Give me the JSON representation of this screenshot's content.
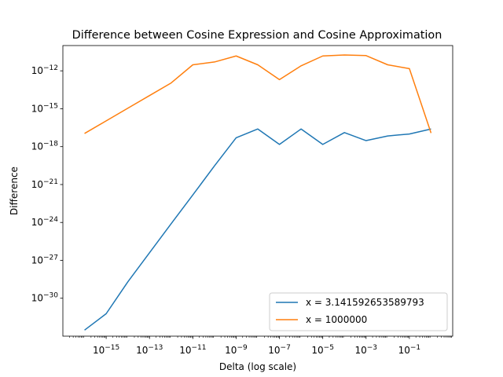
{
  "chart_data": {
    "type": "line",
    "title": "Difference between Cosine Expression and Cosine Approximation",
    "xlabel": "Delta (log scale)",
    "ylabel": "Difference",
    "xscale": "log",
    "yscale": "log",
    "xlim": [
      1e-17,
      10
    ],
    "ylim": [
      1e-33,
      1e-10
    ],
    "grid": false,
    "legend_position": "lower right",
    "x": [
      1e-16,
      1e-15,
      1e-14,
      1e-13,
      1e-12,
      1e-11,
      1e-10,
      1e-09,
      1e-08,
      1e-07,
      1e-06,
      1e-05,
      0.0001,
      0.001,
      0.01,
      0.1,
      1
    ],
    "series": [
      {
        "name": "x = 3.141592653589793",
        "color": "#1f77b4",
        "values": [
          3e-33,
          6e-32,
          2e-29,
          4e-27,
          8e-25,
          1.5e-22,
          3e-20,
          5e-18,
          2.5e-17,
          1.5e-18,
          2.5e-17,
          1.5e-18,
          1.3e-17,
          3e-18,
          7e-18,
          1e-17,
          2.5e-17
        ]
      },
      {
        "name": "x = 1000000",
        "color": "#ff7f0e",
        "values": [
          1.1e-17,
          1.1e-16,
          1.1e-15,
          1.1e-14,
          1.1e-13,
          3e-12,
          5e-12,
          1.5e-11,
          3e-12,
          2e-13,
          2.5e-12,
          1.5e-11,
          1.8e-11,
          1.6e-11,
          3e-12,
          1.5e-12,
          1.2e-17
        ]
      }
    ],
    "x_ticks": [
      {
        "value": 1e-15,
        "label": "10",
        "exp": "−15"
      },
      {
        "value": 1e-13,
        "label": "10",
        "exp": "−13"
      },
      {
        "value": 1e-11,
        "label": "10",
        "exp": "−11"
      },
      {
        "value": 1e-09,
        "label": "10",
        "exp": "−9"
      },
      {
        "value": 1e-07,
        "label": "10",
        "exp": "−7"
      },
      {
        "value": 1e-05,
        "label": "10",
        "exp": "−5"
      },
      {
        "value": 0.001,
        "label": "10",
        "exp": "−3"
      },
      {
        "value": 0.1,
        "label": "10",
        "exp": "−1"
      }
    ],
    "y_ticks": [
      {
        "value": 1e-30,
        "label": "10",
        "exp": "−30"
      },
      {
        "value": 1e-27,
        "label": "10",
        "exp": "−27"
      },
      {
        "value": 1e-24,
        "label": "10",
        "exp": "−24"
      },
      {
        "value": 1e-21,
        "label": "10",
        "exp": "−21"
      },
      {
        "value": 1e-18,
        "label": "10",
        "exp": "−18"
      },
      {
        "value": 1e-15,
        "label": "10",
        "exp": "−15"
      },
      {
        "value": 1e-12,
        "label": "10",
        "exp": "−12"
      }
    ]
  }
}
